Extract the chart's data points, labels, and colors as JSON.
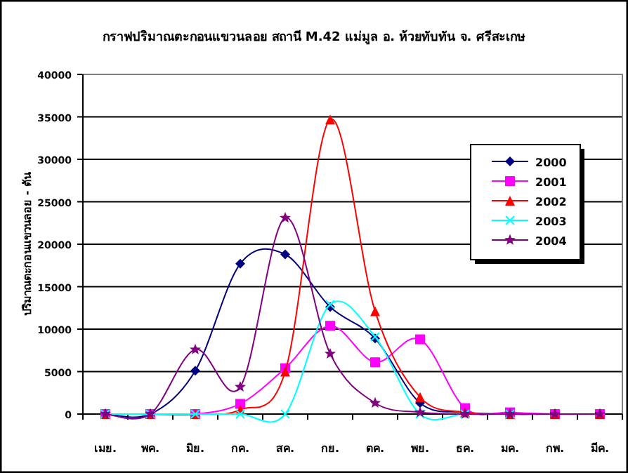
{
  "chart_data": {
    "type": "line",
    "title": "กราฟปริมาณตะกอนแขวนลอย สถานี M.42 แม่มูล อ. ห้วยทับทัน  จ. ศรีสะเกษ",
    "ylabel": "ปริมาณตะกอนแขวนลอย - ตัน",
    "categories": [
      "เมย.",
      "พค.",
      "มิย.",
      "กค.",
      "สค.",
      "กย.",
      "ตค.",
      "พย.",
      "ธค.",
      "มค.",
      "กพ.",
      "มีค."
    ],
    "series": [
      {
        "name": "2000",
        "color": "#000080",
        "marker": "diamond",
        "values": [
          0,
          0,
          5100,
          17700,
          18800,
          12600,
          8900,
          1300,
          200,
          0,
          0,
          0
        ]
      },
      {
        "name": "2001",
        "color": "#ff00ff",
        "marker": "square",
        "values": [
          0,
          0,
          0,
          1200,
          5400,
          10400,
          6100,
          8800,
          700,
          200,
          0,
          0
        ]
      },
      {
        "name": "2002",
        "color": "#ff0000",
        "marker": "triangle",
        "values": [
          0,
          0,
          0,
          500,
          5000,
          34700,
          12100,
          2000,
          200,
          0,
          0,
          0
        ]
      },
      {
        "name": "2003",
        "color": "#00ffff",
        "marker": "cross",
        "values": [
          0,
          0,
          0,
          0,
          0,
          12900,
          9100,
          0,
          0,
          0,
          null,
          null
        ]
      },
      {
        "name": "2004",
        "color": "#800080",
        "marker": "star",
        "values": [
          0,
          0,
          7600,
          3200,
          23100,
          7100,
          1300,
          200,
          0,
          0,
          0,
          0
        ]
      }
    ],
    "ylim": [
      0,
      40000
    ],
    "yticks": [
      0,
      5000,
      10000,
      15000,
      20000,
      25000,
      30000,
      35000,
      40000
    ],
    "grid": "y",
    "legend": "right",
    "line_style": "solid"
  }
}
